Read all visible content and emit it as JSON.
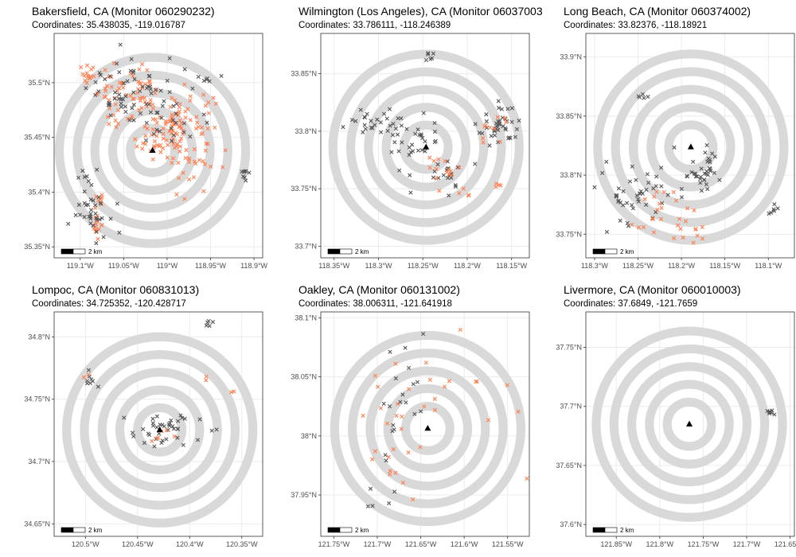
{
  "colors": {
    "ring": "#d9d9d9",
    "grid": "#ebebeb",
    "border": "#333333",
    "point_a": "#ff7f50",
    "point_b": "#555555",
    "monitor": "#000000"
  },
  "scalebar": {
    "label": "2 km"
  },
  "panels": [
    {
      "title": "Bakersfield, CA (Monitor 060290232)",
      "coords": "Coordinates: 35.438035, -119.016787",
      "xticks": [
        "119.1°W",
        "119.05°W",
        "119°W",
        "118.95°W",
        "118.9°W"
      ],
      "yticks": [
        "35.35°N",
        "35.4°N",
        "35.45°N",
        "35.5°N"
      ],
      "chart_data": {
        "type": "scatter",
        "monitor": {
          "lon": -119.016787,
          "lat": 35.438035
        },
        "xlim": [
          -119.13,
          -118.89
        ],
        "ylim": [
          35.34,
          35.545
        ],
        "x_ticks": [
          -119.1,
          -119.05,
          -119.0,
          -118.95,
          -118.9
        ],
        "y_ticks": [
          35.35,
          35.4,
          35.45,
          35.5
        ],
        "rings": 5,
        "clusters": [
          {
            "lon": -118.99,
            "lat": 35.455,
            "sx": 0.022,
            "sy": 0.02,
            "n": 130,
            "group": "a"
          },
          {
            "lon": -119.03,
            "lat": 35.49,
            "sx": 0.01,
            "sy": 0.012,
            "n": 35,
            "group": "a"
          },
          {
            "lon": -119.06,
            "lat": 35.49,
            "sx": 0.01,
            "sy": 0.012,
            "n": 30,
            "group": "a"
          },
          {
            "lon": -119.09,
            "lat": 35.505,
            "sx": 0.005,
            "sy": 0.006,
            "n": 15,
            "group": "a"
          },
          {
            "lon": -119.08,
            "lat": 35.38,
            "sx": 0.004,
            "sy": 0.01,
            "n": 20,
            "group": "a"
          },
          {
            "lon": -119.04,
            "lat": 35.49,
            "sx": 0.025,
            "sy": 0.015,
            "n": 55,
            "group": "b"
          },
          {
            "lon": -119.0,
            "lat": 35.47,
            "sx": 0.02,
            "sy": 0.015,
            "n": 25,
            "group": "b"
          },
          {
            "lon": -119.085,
            "lat": 35.39,
            "sx": 0.01,
            "sy": 0.015,
            "n": 40,
            "group": "b"
          },
          {
            "lon": -118.91,
            "lat": 35.415,
            "sx": 0.003,
            "sy": 0.003,
            "n": 8,
            "group": "b"
          },
          {
            "lon": -118.96,
            "lat": 35.505,
            "sx": 0.012,
            "sy": 0.006,
            "n": 8,
            "group": "b"
          }
        ]
      }
    },
    {
      "title": "Wilmington (Los Angeles), CA (Monitor 06037003",
      "coords": "Coordinates: 33.786111, -118.246389",
      "xticks": [
        "118.35°W",
        "118.3°W",
        "118.25°W",
        "118.2°W",
        "118.15°W"
      ],
      "yticks": [
        "33.7°N",
        "33.75°N",
        "33.8°N",
        "33.85°N"
      ],
      "chart_data": {
        "type": "scatter",
        "monitor": {
          "lon": -118.246389,
          "lat": 33.786111
        },
        "xlim": [
          -118.365,
          -118.13
        ],
        "ylim": [
          33.69,
          33.885
        ],
        "x_ticks": [
          -118.35,
          -118.3,
          -118.25,
          -118.2,
          -118.15
        ],
        "y_ticks": [
          33.7,
          33.75,
          33.8,
          33.85
        ],
        "rings": 5,
        "clusters": [
          {
            "lon": -118.3,
            "lat": 33.808,
            "sx": 0.02,
            "sy": 0.007,
            "n": 30,
            "group": "b"
          },
          {
            "lon": -118.255,
            "lat": 33.79,
            "sx": 0.012,
            "sy": 0.008,
            "n": 25,
            "group": "b"
          },
          {
            "lon": -118.165,
            "lat": 33.805,
            "sx": 0.012,
            "sy": 0.01,
            "n": 40,
            "group": "b"
          },
          {
            "lon": -118.225,
            "lat": 33.765,
            "sx": 0.012,
            "sy": 0.008,
            "n": 20,
            "group": "b"
          },
          {
            "lon": -118.243,
            "lat": 33.865,
            "sx": 0.004,
            "sy": 0.002,
            "n": 6,
            "group": "b"
          },
          {
            "lon": -118.228,
            "lat": 33.765,
            "sx": 0.012,
            "sy": 0.008,
            "n": 14,
            "group": "a"
          },
          {
            "lon": -118.17,
            "lat": 33.8,
            "sx": 0.008,
            "sy": 0.008,
            "n": 10,
            "group": "a"
          },
          {
            "lon": -118.165,
            "lat": 33.753,
            "sx": 0.003,
            "sy": 0.003,
            "n": 4,
            "group": "a"
          },
          {
            "lon": -118.2,
            "lat": 33.745,
            "sx": 0.006,
            "sy": 0.004,
            "n": 4,
            "group": "a"
          }
        ]
      }
    },
    {
      "title": "Long Beach, CA (Monitor 060374002)",
      "coords": "Coordinates: 33.82376, -118.18921",
      "xticks": [
        "118.3°W",
        "118.25°W",
        "118.2°W",
        "118.15°W",
        "118.1°W"
      ],
      "yticks": [
        "33.75°N",
        "33.8°N",
        "33.85°N",
        "33.9°N"
      ],
      "chart_data": {
        "type": "scatter",
        "monitor": {
          "lon": -118.18921,
          "lat": 33.82376
        },
        "xlim": [
          -118.31,
          -118.07
        ],
        "ylim": [
          33.73,
          33.92
        ],
        "x_ticks": [
          -118.3,
          -118.25,
          -118.2,
          -118.15,
          -118.1
        ],
        "y_ticks": [
          33.75,
          33.8,
          33.85,
          33.9
        ],
        "rings": 5,
        "clusters": [
          {
            "lon": -118.17,
            "lat": 33.805,
            "sx": 0.012,
            "sy": 0.01,
            "n": 35,
            "group": "b"
          },
          {
            "lon": -118.255,
            "lat": 33.785,
            "sx": 0.025,
            "sy": 0.015,
            "n": 45,
            "group": "b"
          },
          {
            "lon": -118.245,
            "lat": 33.865,
            "sx": 0.004,
            "sy": 0.002,
            "n": 5,
            "group": "b"
          },
          {
            "lon": -118.095,
            "lat": 33.77,
            "sx": 0.006,
            "sy": 0.003,
            "n": 6,
            "group": "b"
          },
          {
            "lon": -118.22,
            "lat": 33.765,
            "sx": 0.02,
            "sy": 0.012,
            "n": 22,
            "group": "a"
          },
          {
            "lon": -118.185,
            "lat": 33.75,
            "sx": 0.01,
            "sy": 0.006,
            "n": 8,
            "group": "a"
          }
        ]
      }
    },
    {
      "title": "Lompoc, CA (Monitor 060831013)",
      "coords": "Coordinates: 34.725352, -120.428717",
      "xticks": [
        "120.5°W",
        "120.45°W",
        "120.4°W",
        "120.35°W"
      ],
      "yticks": [
        "34.65°N",
        "34.7°N",
        "34.75°N",
        "34.8°N"
      ],
      "chart_data": {
        "type": "scatter",
        "monitor": {
          "lon": -120.428717,
          "lat": 34.725352
        },
        "xlim": [
          -120.53,
          -120.33
        ],
        "ylim": [
          34.64,
          34.82
        ],
        "x_ticks": [
          -120.5,
          -120.45,
          -120.4,
          -120.35
        ],
        "y_ticks": [
          34.65,
          34.7,
          34.75,
          34.8
        ],
        "rings": 5,
        "clusters": [
          {
            "lon": -120.43,
            "lat": 34.725,
            "sx": 0.02,
            "sy": 0.007,
            "n": 40,
            "group": "b"
          },
          {
            "lon": -120.495,
            "lat": 34.765,
            "sx": 0.006,
            "sy": 0.004,
            "n": 8,
            "group": "b"
          },
          {
            "lon": -120.38,
            "lat": 34.805,
            "sx": 0.006,
            "sy": 0.006,
            "n": 5,
            "group": "b"
          },
          {
            "lon": -120.425,
            "lat": 34.72,
            "sx": 0.01,
            "sy": 0.004,
            "n": 6,
            "group": "a"
          },
          {
            "lon": -120.385,
            "lat": 34.765,
            "sx": 0.002,
            "sy": 0.002,
            "n": 2,
            "group": "a"
          },
          {
            "lon": -120.36,
            "lat": 34.755,
            "sx": 0.001,
            "sy": 0.002,
            "n": 2,
            "group": "a"
          },
          {
            "lon": -120.5,
            "lat": 34.768,
            "sx": 0.002,
            "sy": 0.002,
            "n": 2,
            "group": "a"
          }
        ]
      }
    },
    {
      "title": "Oakley, CA (Monitor 060131002)",
      "coords": "Coordinates: 38.006311, -121.641918",
      "xticks": [
        "121.75°W",
        "121.7°W",
        "121.65°W",
        "121.6°W",
        "121.55°W"
      ],
      "yticks": [
        "37.95°N",
        "38°N",
        "38.05°N",
        "38.1°N"
      ],
      "chart_data": {
        "type": "scatter",
        "monitor": {
          "lon": -121.641918,
          "lat": 38.006311
        },
        "xlim": [
          -121.765,
          -121.525
        ],
        "ylim": [
          37.915,
          38.105
        ],
        "x_ticks": [
          -121.75,
          -121.7,
          -121.65,
          -121.6,
          -121.55
        ],
        "y_ticks": [
          37.95,
          38.0,
          38.05,
          38.1
        ],
        "rings": 5,
        "clusters": [
          {
            "lon": -121.66,
            "lat": 38.02,
            "sx": 0.025,
            "sy": 0.04,
            "n": 28,
            "group": "a"
          },
          {
            "lon": -121.6,
            "lat": 38.05,
            "sx": 0.03,
            "sy": 0.04,
            "n": 8,
            "group": "a"
          },
          {
            "lon": -121.67,
            "lat": 38.03,
            "sx": 0.02,
            "sy": 0.035,
            "n": 20,
            "group": "b"
          },
          {
            "lon": -121.7,
            "lat": 37.945,
            "sx": 0.01,
            "sy": 0.005,
            "n": 5,
            "group": "b"
          }
        ]
      }
    },
    {
      "title": "Livermore, CA (Monitor 060010003)",
      "coords": "Coordinates: 37.6849, -121.7659",
      "xticks": [
        "121.85°W",
        "121.8°W",
        "121.75°W",
        "121.7°W",
        "121.65°W"
      ],
      "yticks": [
        "37.6°N",
        "37.65°N",
        "37.7°N",
        "37.75°N"
      ],
      "chart_data": {
        "type": "scatter",
        "monitor": {
          "lon": -121.7659,
          "lat": 37.6849
        },
        "xlim": [
          -121.885,
          -121.645
        ],
        "ylim": [
          37.59,
          37.78
        ],
        "x_ticks": [
          -121.85,
          -121.8,
          -121.75,
          -121.7,
          -121.65
        ],
        "y_ticks": [
          37.6,
          37.65,
          37.7,
          37.75
        ],
        "rings": 5,
        "clusters": [
          {
            "lon": -121.673,
            "lat": 37.695,
            "sx": 0.002,
            "sy": 0.001,
            "n": 8,
            "group": "b"
          }
        ]
      }
    }
  ]
}
